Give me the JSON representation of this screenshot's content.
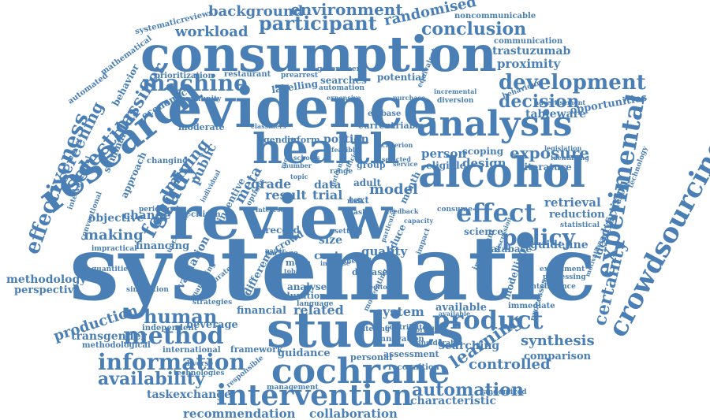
{
  "cloud": {
    "color": "#4a7fb5",
    "words": [
      {
        "text": "systematic",
        "weight": 1.0
      },
      {
        "text": "review",
        "weight": 0.95
      },
      {
        "text": "evidence",
        "weight": 0.88
      },
      {
        "text": "consumption",
        "weight": 0.78
      },
      {
        "text": "studies",
        "weight": 0.72
      },
      {
        "text": "health",
        "weight": 0.68
      },
      {
        "text": "alcohol",
        "weight": 0.66
      },
      {
        "text": "research",
        "weight": 0.6
      },
      {
        "text": "analysis",
        "weight": 0.55
      },
      {
        "text": "cochrane",
        "weight": 0.52
      },
      {
        "text": "crowdsourcing",
        "weight": 0.5
      },
      {
        "text": "intervention",
        "weight": 0.5
      },
      {
        "text": "experimental",
        "weight": 0.45
      },
      {
        "text": "effect",
        "weight": 0.45
      },
      {
        "text": "product",
        "weight": 0.44
      },
      {
        "text": "study",
        "weight": 0.44
      },
      {
        "text": "method",
        "weight": 0.43
      },
      {
        "text": "effectiveness",
        "weight": 0.42
      },
      {
        "text": "information",
        "weight": 0.4
      },
      {
        "text": "policy",
        "weight": 0.4
      },
      {
        "text": "machine",
        "weight": 0.39
      },
      {
        "text": "food",
        "weight": 0.39
      },
      {
        "text": "selection",
        "weight": 0.38
      },
      {
        "text": "development",
        "weight": 0.37
      },
      {
        "text": "participant",
        "weight": 0.36
      },
      {
        "text": "human",
        "weight": 0.36
      },
      {
        "text": "classifier",
        "weight": 0.34
      },
      {
        "text": "screening",
        "weight": 0.34
      },
      {
        "text": "learning",
        "weight": 0.33
      },
      {
        "text": "availability",
        "weight": 0.32
      },
      {
        "text": "automation",
        "weight": 0.32
      },
      {
        "text": "decision",
        "weight": 0.32
      },
      {
        "text": "certainty",
        "weight": 0.3
      },
      {
        "text": "conclusion",
        "weight": 0.3
      },
      {
        "text": "mining",
        "weight": 0.3
      },
      {
        "text": "exposure",
        "weight": 0.3
      },
      {
        "text": "environment",
        "weight": 0.3
      },
      {
        "text": "controlled",
        "weight": 0.29
      },
      {
        "text": "synthesis",
        "weight": 0.29
      },
      {
        "text": "production",
        "weight": 0.29
      },
      {
        "text": "model",
        "weight": 0.29
      },
      {
        "text": "meta",
        "weight": 0.29
      },
      {
        "text": "background",
        "weight": 0.28
      },
      {
        "text": "workload",
        "weight": 0.28
      },
      {
        "text": "randomised",
        "weight": 0.27
      },
      {
        "text": "public",
        "weight": 0.27
      },
      {
        "text": "making",
        "weight": 0.27
      },
      {
        "text": "grade",
        "weight": 0.27
      },
      {
        "text": "result",
        "weight": 0.27
      },
      {
        "text": "trial",
        "weight": 0.27
      },
      {
        "text": "related",
        "weight": 0.26
      },
      {
        "text": "system",
        "weight": 0.26
      },
      {
        "text": "recommendation",
        "weight": 0.26
      },
      {
        "text": "collaboration",
        "weight": 0.26
      },
      {
        "text": "proximity",
        "weight": 0.26
      },
      {
        "text": "trastuzumab",
        "weight": 0.25
      },
      {
        "text": "retrieval",
        "weight": 0.25
      },
      {
        "text": "design",
        "weight": 0.25
      },
      {
        "text": "person",
        "weight": 0.25
      },
      {
        "text": "change",
        "weight": 0.25
      },
      {
        "text": "objective",
        "weight": 0.24
      },
      {
        "text": "evaluation",
        "weight": 0.24
      },
      {
        "text": "transgender",
        "weight": 0.24
      },
      {
        "text": "searching",
        "weight": 0.24
      },
      {
        "text": "methodology",
        "weight": 0.24
      },
      {
        "text": "taskexchange",
        "weight": 0.24
      },
      {
        "text": "guideline",
        "weight": 0.23
      },
      {
        "text": "characteristic",
        "weight": 0.23
      },
      {
        "text": "comparison",
        "weight": 0.23
      },
      {
        "text": "identification",
        "weight": 0.23
      },
      {
        "text": "advertising",
        "weight": 0.23
      },
      {
        "text": "opportunities",
        "weight": 0.22
      },
      {
        "text": "reduction",
        "weight": 0.22
      },
      {
        "text": "quality",
        "weight": 0.22
      },
      {
        "text": "cost",
        "weight": 0.22
      },
      {
        "text": "size",
        "weight": 0.22
      },
      {
        "text": "data",
        "weight": 0.22
      },
      {
        "text": "portion",
        "weight": 0.22
      },
      {
        "text": "tableware",
        "weight": 0.22
      },
      {
        "text": "financing",
        "weight": 0.22
      },
      {
        "text": "perspective",
        "weight": 0.22
      },
      {
        "text": "beverage",
        "weight": 0.22
      },
      {
        "text": "guidance",
        "weight": 0.22
      },
      {
        "text": "financial",
        "weight": 0.22
      },
      {
        "text": "different",
        "weight": 0.22
      },
      {
        "text": "available",
        "weight": 0.22
      },
      {
        "text": "summary",
        "weight": 0.21
      },
      {
        "text": "approach",
        "weight": 0.21
      },
      {
        "text": "behavior",
        "weight": 0.21
      },
      {
        "text": "economic",
        "weight": 0.21
      },
      {
        "text": "labelling",
        "weight": 0.21
      },
      {
        "text": "potential",
        "weight": 0.21
      },
      {
        "text": "eligible",
        "weight": 0.21
      },
      {
        "text": "scoping",
        "weight": 0.21
      },
      {
        "text": "literature",
        "weight": 0.21
      },
      {
        "text": "incentive",
        "weight": 0.21
      },
      {
        "text": "searches",
        "weight": 0.21
      },
      {
        "text": "science",
        "weight": 0.21
      },
      {
        "text": "database",
        "weight": 0.21
      },
      {
        "text": "modelling",
        "weight": 0.21
      },
      {
        "text": "record",
        "weight": 0.21
      },
      {
        "text": "crowd",
        "weight": 0.21
      },
      {
        "text": "text",
        "weight": 0.21
      },
      {
        "text": "adult",
        "weight": 0.21
      },
      {
        "text": "more",
        "weight": 0.21
      },
      {
        "text": "disease",
        "weight": 0.21
      },
      {
        "text": "reduce",
        "weight": 0.21
      },
      {
        "text": "month",
        "weight": 0.21
      },
      {
        "text": "analyse",
        "weight": 0.21
      },
      {
        "text": "duration",
        "weight": 0.21
      },
      {
        "text": "moderate",
        "weight": 0.21
      },
      {
        "text": "inform",
        "weight": 0.21
      },
      {
        "text": "gender",
        "weight": 0.21
      },
      {
        "text": "group",
        "weight": 0.21
      },
      {
        "text": "current",
        "weight": 0.21
      },
      {
        "text": "variable",
        "weight": 0.21
      },
      {
        "text": "personal",
        "weight": 0.21
      },
      {
        "text": "assessment",
        "weight": 0.21
      },
      {
        "text": "framework",
        "weight": 0.21
      },
      {
        "text": "international",
        "weight": 0.2
      },
      {
        "text": "independent",
        "weight": 0.2
      },
      {
        "text": "methodological",
        "weight": 0.2
      },
      {
        "text": "technologies",
        "weight": 0.2
      },
      {
        "text": "diverse",
        "weight": 0.2
      },
      {
        "text": "citizen",
        "weight": 0.2
      },
      {
        "text": "management",
        "weight": 0.2
      },
      {
        "text": "responsible",
        "weight": 0.2
      },
      {
        "text": "innovation",
        "weight": 0.2
      },
      {
        "text": "recognition",
        "weight": 0.2
      },
      {
        "text": "randomized",
        "weight": 0.2
      },
      {
        "text": "considerable",
        "weight": 0.2
      },
      {
        "text": "processes",
        "weight": 0.2
      },
      {
        "text": "immediate",
        "weight": 0.2
      },
      {
        "text": "intelligence",
        "weight": 0.2
      },
      {
        "text": "processing",
        "weight": 0.2
      },
      {
        "text": "experiment",
        "weight": 0.2
      },
      {
        "text": "important",
        "weight": 0.2
      },
      {
        "text": "statistical",
        "weight": 0.2
      },
      {
        "text": "technology",
        "weight": 0.2
      },
      {
        "text": "communication",
        "weight": 0.2
      },
      {
        "text": "noncommunicable",
        "weight": 0.2
      },
      {
        "text": "systematicreviews",
        "weight": 0.2
      },
      {
        "text": "mathematical",
        "weight": 0.2
      },
      {
        "text": "automated",
        "weight": 0.2
      },
      {
        "text": "prioritization",
        "weight": 0.2
      },
      {
        "text": "restaurant",
        "weight": 0.2
      },
      {
        "text": "prearrest",
        "weight": 0.2
      },
      {
        "text": "community",
        "weight": 0.2
      },
      {
        "text": "automation",
        "weight": 0.2
      },
      {
        "text": "equivalent",
        "weight": 0.2
      },
      {
        "text": "government",
        "weight": 0.2
      },
      {
        "text": "embase",
        "weight": 0.2
      },
      {
        "text": "diversion",
        "weight": 0.2
      },
      {
        "text": "incremental",
        "weight": 0.2
      },
      {
        "text": "behaviour",
        "weight": 0.2
      },
      {
        "text": "advertisement",
        "weight": 0.2
      },
      {
        "text": "quantities",
        "weight": 0.2
      },
      {
        "text": "simulation",
        "weight": 0.2
      },
      {
        "text": "impractical",
        "weight": 0.2
      },
      {
        "text": "marketing",
        "weight": 0.2
      },
      {
        "text": "accurate",
        "weight": 0.2
      },
      {
        "text": "strategies",
        "weight": 0.2
      },
      {
        "text": "contribute",
        "weight": 0.2
      },
      {
        "text": "altering",
        "weight": 0.2
      },
      {
        "text": "workplace",
        "weight": 0.2
      },
      {
        "text": "changing",
        "weight": 0.2
      },
      {
        "text": "periodical",
        "weight": 0.2
      },
      {
        "text": "conventional",
        "weight": 0.2
      },
      {
        "text": "interventional",
        "weight": 0.2
      },
      {
        "text": "uncertainty",
        "weight": 0.2
      },
      {
        "text": "language",
        "weight": 0.2
      },
      {
        "text": "package",
        "weight": 0.2
      },
      {
        "text": "interest",
        "weight": 0.2
      },
      {
        "text": "increase",
        "weight": 0.2
      },
      {
        "text": "editorial",
        "weight": 0.2
      },
      {
        "text": "tobacco",
        "weight": 0.2
      },
      {
        "text": "impact",
        "weight": 0.2
      },
      {
        "text": "range",
        "weight": 0.2
      },
      {
        "text": "capacity",
        "weight": 0.2
      },
      {
        "text": "efficient",
        "weight": 0.2
      },
      {
        "text": "service",
        "weight": 0.2
      },
      {
        "text": "consume",
        "weight": 0.2
      },
      {
        "text": "task",
        "weight": 0.2
      },
      {
        "text": "risk",
        "weight": 0.2
      },
      {
        "text": "setting",
        "weight": 0.2
      },
      {
        "text": "mental",
        "weight": 0.2
      },
      {
        "text": "paper",
        "weight": 0.2
      },
      {
        "text": "options",
        "weight": 0.2
      },
      {
        "text": "criterion",
        "weight": 0.2
      },
      {
        "text": "feasible",
        "weight": 0.2
      },
      {
        "text": "outcome",
        "weight": 0.2
      },
      {
        "text": "topic",
        "weight": 0.2
      },
      {
        "text": "mortality",
        "weight": 0.2
      },
      {
        "text": "number",
        "weight": 0.2
      },
      {
        "text": "identifying",
        "weight": 0.2
      },
      {
        "text": "legislation",
        "weight": 0.2
      },
      {
        "text": "motivation",
        "weight": 0.2
      },
      {
        "text": "discussion",
        "weight": 0.2
      },
      {
        "text": "particular",
        "weight": 0.2
      },
      {
        "text": "feedback",
        "weight": 0.2
      },
      {
        "text": "purchase",
        "weight": 0.2
      },
      {
        "text": "individual",
        "weight": 0.2
      },
      {
        "text": "expensive",
        "weight": 0.2
      },
      {
        "text": "selected",
        "weight": 0.2
      },
      {
        "text": "classifiers",
        "weight": 0.2
      },
      {
        "text": "moderating",
        "weight": 0.2
      },
      {
        "text": "schools",
        "weight": 0.2
      },
      {
        "text": "available",
        "weight": 0.2
      }
    ]
  }
}
